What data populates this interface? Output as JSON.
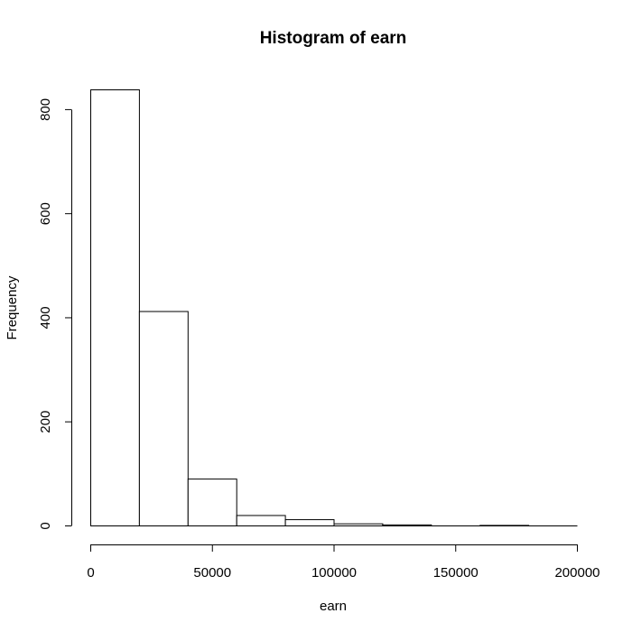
{
  "chart_data": {
    "type": "bar",
    "title": "Histogram of earn",
    "xlabel": "earn",
    "ylabel": "Frequency",
    "bins": [
      {
        "start": 0,
        "end": 20000,
        "count": 838
      },
      {
        "start": 20000,
        "end": 40000,
        "count": 412
      },
      {
        "start": 40000,
        "end": 60000,
        "count": 90
      },
      {
        "start": 60000,
        "end": 80000,
        "count": 20
      },
      {
        "start": 80000,
        "end": 100000,
        "count": 12
      },
      {
        "start": 100000,
        "end": 120000,
        "count": 4
      },
      {
        "start": 120000,
        "end": 140000,
        "count": 2
      },
      {
        "start": 140000,
        "end": 160000,
        "count": 0
      },
      {
        "start": 160000,
        "end": 180000,
        "count": 1
      },
      {
        "start": 180000,
        "end": 200000,
        "count": 0
      }
    ],
    "xlim": [
      0,
      200000
    ],
    "ylim": [
      0,
      838
    ],
    "xticks": [
      0,
      50000,
      100000,
      150000,
      200000
    ],
    "xtick_labels": [
      "0",
      "50000",
      "100000",
      "150000",
      "200000"
    ],
    "yticks": [
      0,
      200,
      400,
      600,
      800
    ],
    "ytick_labels": [
      "0",
      "200",
      "400",
      "600",
      "800"
    ],
    "grid": false,
    "legend": "none"
  }
}
